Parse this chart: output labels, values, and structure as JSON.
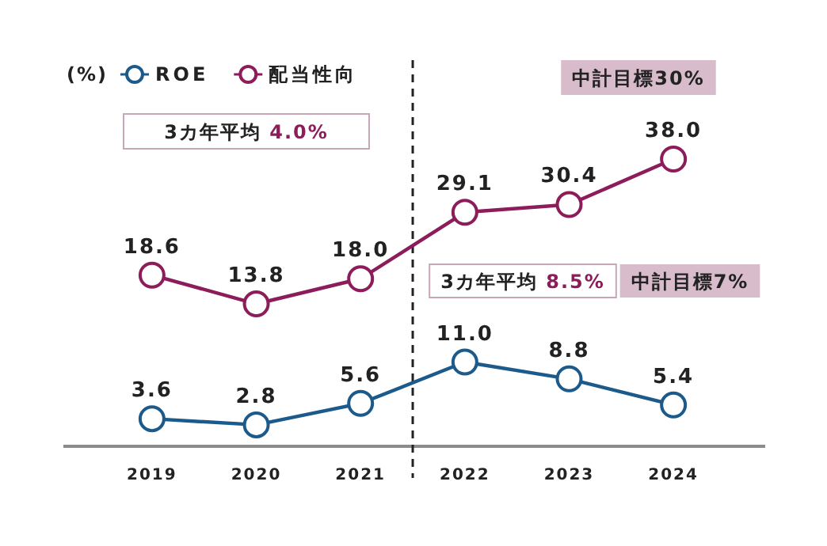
{
  "chart_data": {
    "type": "line",
    "ylabel": "(%)",
    "x": [
      2019,
      2020,
      2021,
      2022,
      2023,
      2024
    ],
    "xlim": [
      2018.15,
      2024.88
    ],
    "xticks": [
      2019,
      2020,
      2021,
      2022,
      2023,
      2024
    ],
    "ylim": [
      0,
      50
    ],
    "y2lim": [
      -10,
      54
    ],
    "tick_labels": "x",
    "legend": "top left",
    "marker": "circle",
    "line_style": "solid",
    "series": [
      {
        "name": "ROE",
        "color": "#1b5a8a",
        "values": [
          3.6,
          2.8,
          5.6,
          11.0,
          8.8,
          5.4
        ],
        "value_labels": [
          "3.6",
          "2.8",
          "5.6",
          "11.0",
          "8.8",
          "5.4"
        ]
      },
      {
        "name": "配当性向",
        "color": "#8c1c5a",
        "axis": "y2",
        "values": [
          18.6,
          13.8,
          18.0,
          29.1,
          30.4,
          38.0
        ],
        "value_labels": [
          "18.6",
          "13.8",
          "18.0",
          "29.1",
          "30.4",
          "38.0"
        ]
      }
    ],
    "ref_lines": [
      {
        "axis": "x",
        "value": 2021.5,
        "color": "#222222",
        "line_style": "dashed"
      }
    ],
    "annotations": [
      "中計目標30%",
      "3カ年平均 4.0%",
      "3カ年平均 8.5%",
      "中計目標7%"
    ]
  }
}
